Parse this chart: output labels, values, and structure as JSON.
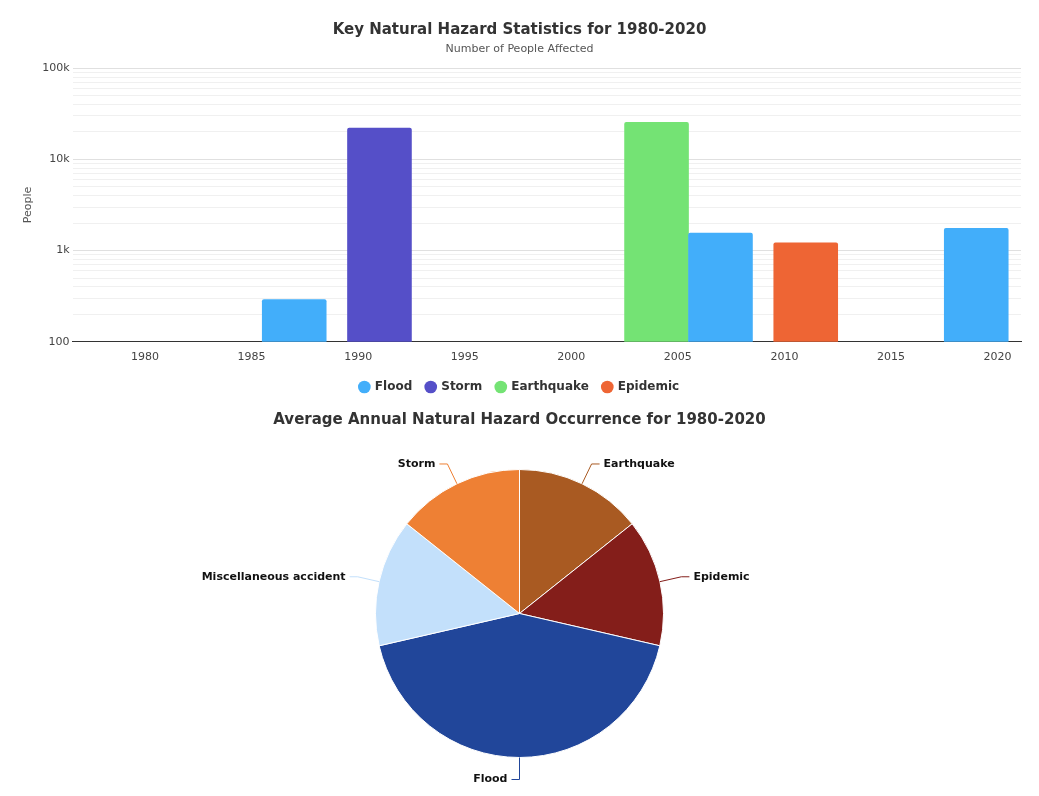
{
  "chart_data": [
    {
      "type": "bar",
      "title": "Key Natural Hazard Statistics for 1980-2020",
      "subtitle": "Number of People Affected",
      "ylabel": "People",
      "log": "y",
      "grid": "y",
      "legend": "bottom",
      "xlim": [
        1976.6,
        2021.1
      ],
      "xticks": [
        1980,
        1985,
        1990,
        1995,
        2000,
        2005,
        2010,
        2015,
        2020
      ],
      "ylim": [
        100,
        100000
      ],
      "yticks": [
        {
          "value": 100,
          "label": "100"
        },
        {
          "value": 200,
          "label": null
        },
        {
          "value": 300,
          "label": null
        },
        {
          "value": 400,
          "label": null
        },
        {
          "value": 500,
          "label": null
        },
        {
          "value": 600,
          "label": null
        },
        {
          "value": 700,
          "label": null
        },
        {
          "value": 800,
          "label": null
        },
        {
          "value": 900,
          "label": null
        },
        {
          "value": 1000,
          "label": "1k"
        },
        {
          "value": 2000,
          "label": null
        },
        {
          "value": 3000,
          "label": null
        },
        {
          "value": 4000,
          "label": null
        },
        {
          "value": 5000,
          "label": null
        },
        {
          "value": 6000,
          "label": null
        },
        {
          "value": 7000,
          "label": null
        },
        {
          "value": 8000,
          "label": null
        },
        {
          "value": 9000,
          "label": null
        },
        {
          "value": 10000,
          "label": "10k"
        },
        {
          "value": 20000,
          "label": null
        },
        {
          "value": 30000,
          "label": null
        },
        {
          "value": 40000,
          "label": null
        },
        {
          "value": 50000,
          "label": null
        },
        {
          "value": 60000,
          "label": null
        },
        {
          "value": 70000,
          "label": null
        },
        {
          "value": 80000,
          "label": null
        },
        {
          "value": 90000,
          "label": null
        },
        {
          "value": 100000,
          "label": "100k"
        }
      ],
      "series": [
        {
          "name": "Flood",
          "color": "#42aefa",
          "x": [
            1987,
            2007,
            2019
          ],
          "values": [
            290,
            1560,
            1750
          ]
        },
        {
          "name": "Storm",
          "color": "#554fc8",
          "x": [
            1991
          ],
          "values": [
            22000
          ]
        },
        {
          "name": "Earthquake",
          "color": "#74e374",
          "x": [
            2004
          ],
          "values": [
            25500
          ]
        },
        {
          "name": "Epidemic",
          "color": "#ee6534",
          "x": [
            2011
          ],
          "values": [
            1220
          ]
        }
      ]
    },
    {
      "type": "pie",
      "title": "Average Annual Natural Hazard Occurrence for 1980-2020",
      "legend": false,
      "categories": [
        "Earthquake",
        "Epidemic",
        "Flood",
        "Miscellaneous accident",
        "Storm"
      ],
      "values": [
        14.3,
        14.3,
        42.8,
        14.3,
        14.3
      ],
      "colors": [
        "#a95a22",
        "#841e1a",
        "#21469a",
        "#c3e0fb",
        "#ee8034"
      ]
    }
  ]
}
